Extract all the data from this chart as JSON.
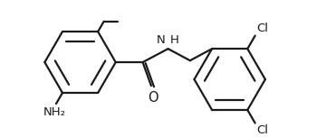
{
  "bg_color": "#ffffff",
  "line_color": "#1a1a1a",
  "line_width": 1.6,
  "font_size": 9.5,
  "figsize": [
    3.6,
    1.52
  ],
  "dpi": 100,
  "xlim": [
    0,
    360
  ],
  "ylim": [
    0,
    152
  ]
}
